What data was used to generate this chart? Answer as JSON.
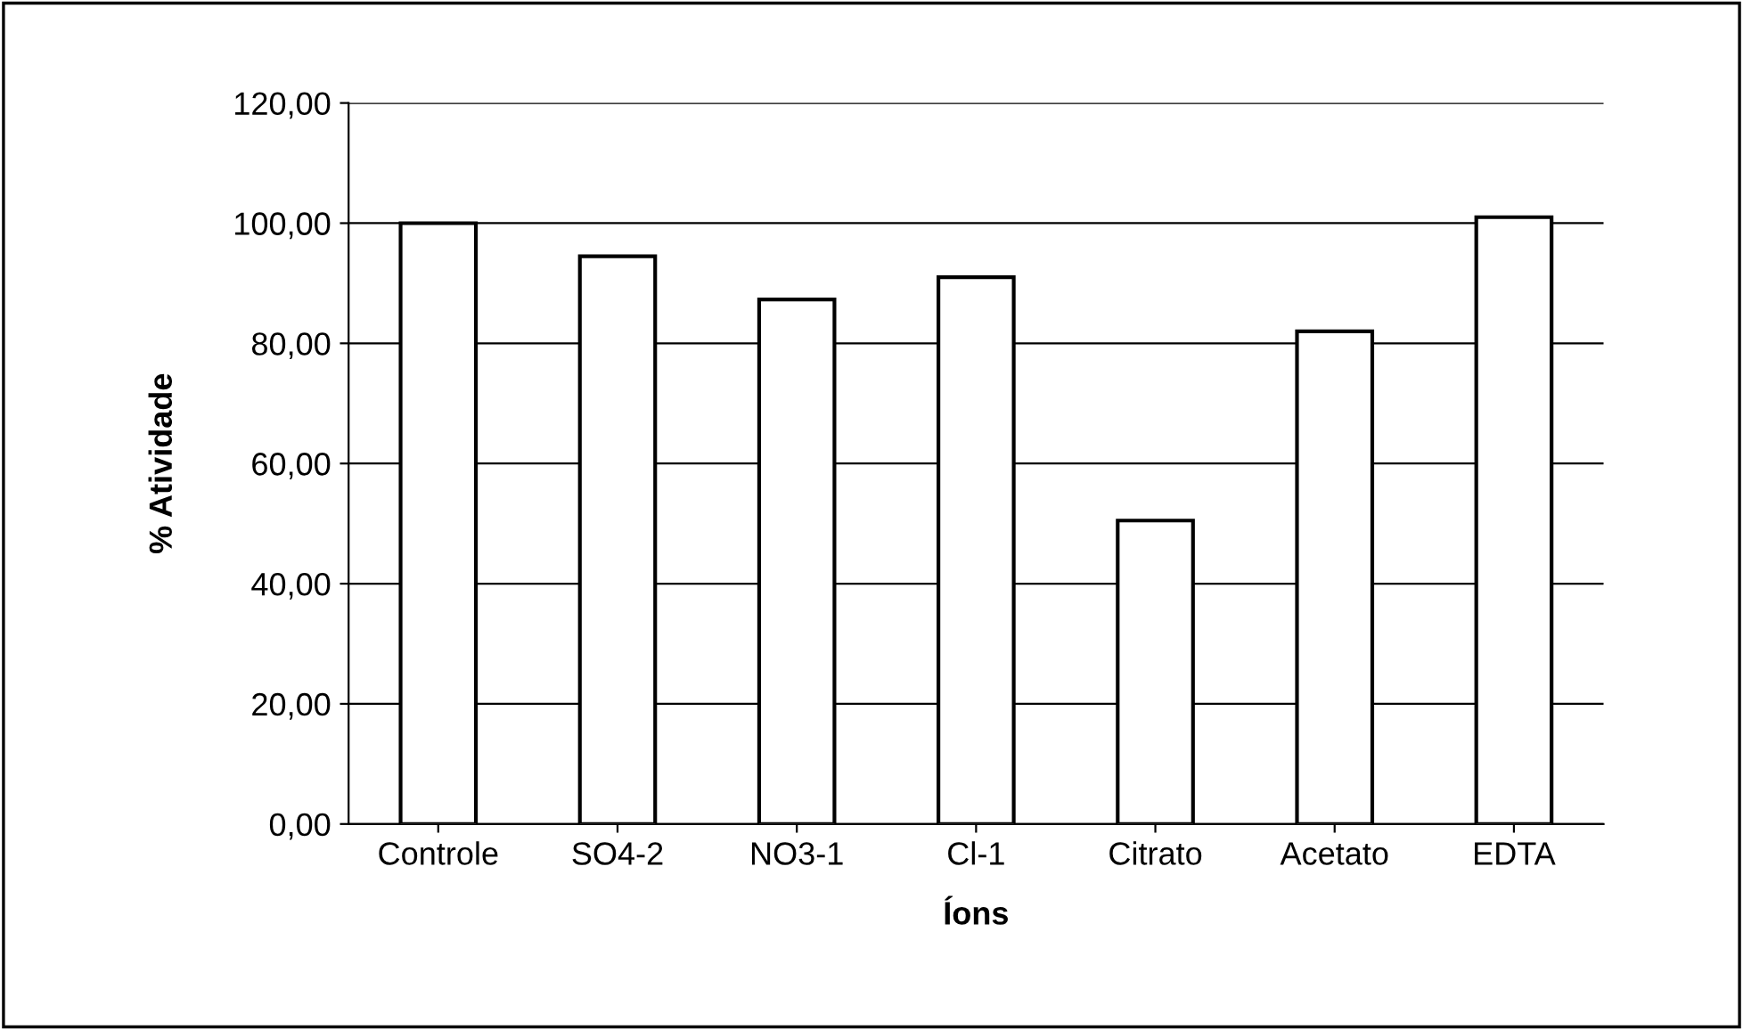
{
  "chart_data": {
    "type": "bar",
    "xlabel": "Íons",
    "ylabel": "% Atividade",
    "categories": [
      "Controle",
      "SO4-2",
      "NO3-1",
      "Cl-1",
      "Citrato",
      "Acetato",
      "EDTA"
    ],
    "values": [
      100,
      94.5,
      87.3,
      91,
      50.5,
      82,
      101
    ],
    "color": "#ffffff",
    "ylim": [
      0,
      120
    ],
    "yticks": [
      {
        "value": 0,
        "label": "0,00"
      },
      {
        "value": 20,
        "label": "20,00"
      },
      {
        "value": 40,
        "label": "40,00"
      },
      {
        "value": 60,
        "label": "60,00"
      },
      {
        "value": 80,
        "label": "80,00"
      },
      {
        "value": 100,
        "label": "100,00"
      },
      {
        "value": 120,
        "label": "120,00"
      }
    ],
    "grid": "y"
  }
}
